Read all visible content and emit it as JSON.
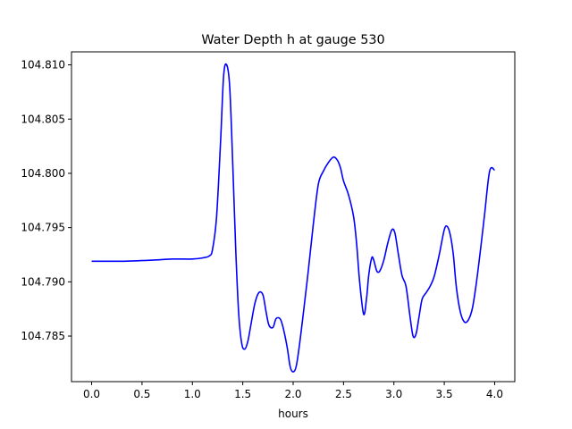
{
  "chart_data": {
    "type": "line",
    "title": "Water Depth h at gauge 530",
    "xlabel": "hours",
    "ylabel": "",
    "xlim": [
      -0.2,
      4.2
    ],
    "ylim": [
      104.7808,
      104.8112
    ],
    "xticks": [
      0.0,
      0.5,
      1.0,
      1.5,
      2.0,
      2.5,
      3.0,
      3.5,
      4.0
    ],
    "xtick_labels": [
      "0.0",
      "0.5",
      "1.0",
      "1.5",
      "2.0",
      "2.5",
      "3.0",
      "3.5",
      "4.0"
    ],
    "yticks": [
      104.785,
      104.79,
      104.795,
      104.8,
      104.805,
      104.81
    ],
    "ytick_labels": [
      "104.785",
      "104.790",
      "104.795",
      "104.800",
      "104.805",
      "104.810"
    ],
    "grid": false,
    "series": [
      {
        "color": "#0000ff",
        "x": [
          0.0,
          0.3,
          0.6,
          0.8,
          1.0,
          1.1,
          1.17,
          1.2,
          1.24,
          1.28,
          1.31,
          1.34,
          1.37,
          1.4,
          1.43,
          1.46,
          1.49,
          1.52,
          1.55,
          1.58,
          1.62,
          1.66,
          1.7,
          1.73,
          1.76,
          1.8,
          1.83,
          1.87,
          1.9,
          1.94,
          1.97,
          2.0,
          2.03,
          2.06,
          2.1,
          2.15,
          2.2,
          2.25,
          2.3,
          2.35,
          2.4,
          2.44,
          2.47,
          2.5,
          2.55,
          2.6,
          2.63,
          2.66,
          2.7,
          2.73,
          2.75,
          2.78,
          2.8,
          2.83,
          2.86,
          2.9,
          2.94,
          2.98,
          3.01,
          3.04,
          3.08,
          3.12,
          3.16,
          3.19,
          3.22,
          3.25,
          3.28,
          3.32,
          3.36,
          3.4,
          3.45,
          3.5,
          3.53,
          3.56,
          3.59,
          3.62,
          3.66,
          3.7,
          3.74,
          3.78,
          3.82,
          3.86,
          3.9,
          3.95,
          4.0
        ],
        "values": [
          104.7919,
          104.7919,
          104.792,
          104.7921,
          104.7921,
          104.7922,
          104.7924,
          104.793,
          104.796,
          104.803,
          104.809,
          104.81,
          104.808,
          104.801,
          104.793,
          104.787,
          104.7843,
          104.7838,
          104.7845,
          104.786,
          104.788,
          104.789,
          104.7888,
          104.7873,
          104.786,
          104.7858,
          104.7866,
          104.7866,
          104.7858,
          104.784,
          104.7822,
          104.7817,
          104.7822,
          104.784,
          104.787,
          104.791,
          104.7953,
          104.799,
          104.8002,
          104.801,
          104.8015,
          104.8012,
          104.8005,
          104.7993,
          104.798,
          104.796,
          104.7935,
          104.79,
          104.787,
          104.7886,
          104.7906,
          104.7922,
          104.792,
          104.791,
          104.791,
          104.792,
          104.7936,
          104.7948,
          104.7945,
          104.7928,
          104.7906,
          104.7896,
          104.7868,
          104.785,
          104.7852,
          104.7868,
          104.7884,
          104.789,
          104.7896,
          104.7905,
          104.7925,
          104.7948,
          104.7951,
          104.7943,
          104.7925,
          104.7895,
          104.7872,
          104.7863,
          104.7865,
          104.7876,
          104.79,
          104.793,
          104.7962,
          104.8002,
          104.8003
        ]
      }
    ]
  }
}
